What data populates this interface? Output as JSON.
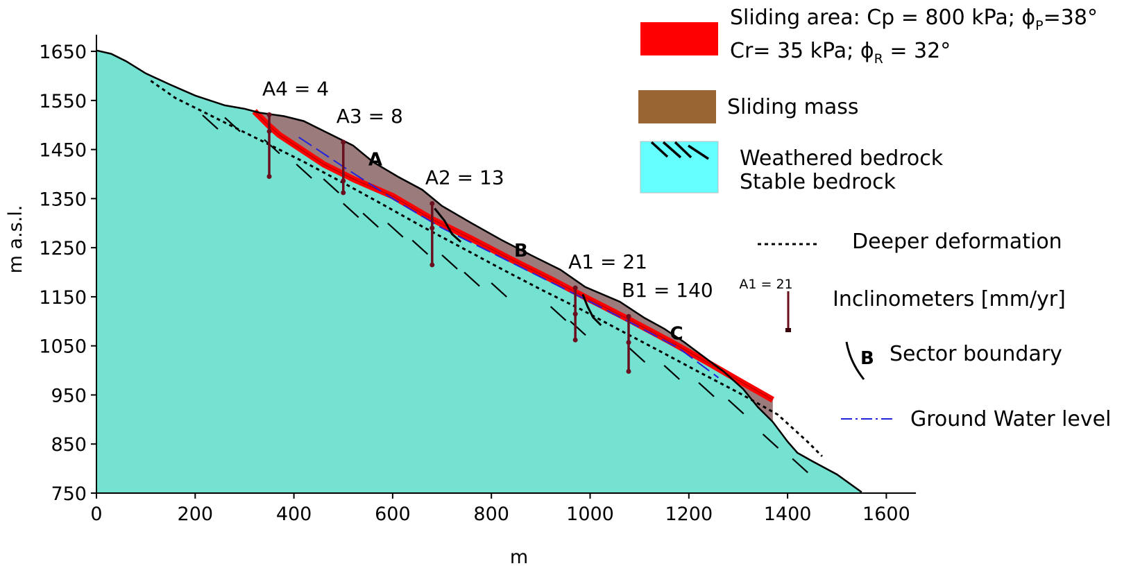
{
  "chart_data": {
    "type": "cross-section",
    "xlabel": "m",
    "ylabel": "m a.s.l.",
    "xlim": [
      0,
      1660
    ],
    "ylim": [
      750,
      1650
    ],
    "x_ticks": [
      0,
      200,
      400,
      600,
      800,
      1000,
      1200,
      1400,
      1600
    ],
    "y_ticks": [
      750,
      850,
      950,
      1050,
      1150,
      1250,
      1350,
      1450,
      1550,
      1650
    ],
    "ground_surface": [
      [
        0,
        1652
      ],
      [
        30,
        1645
      ],
      [
        60,
        1630
      ],
      [
        100,
        1605
      ],
      [
        150,
        1582
      ],
      [
        200,
        1560
      ],
      [
        260,
        1540
      ],
      [
        300,
        1533
      ],
      [
        330,
        1525
      ],
      [
        380,
        1518
      ],
      [
        420,
        1508
      ],
      [
        460,
        1488
      ],
      [
        520,
        1458
      ],
      [
        560,
        1425
      ],
      [
        610,
        1395
      ],
      [
        660,
        1368
      ],
      [
        700,
        1335
      ],
      [
        760,
        1300
      ],
      [
        820,
        1266
      ],
      [
        880,
        1235
      ],
      [
        940,
        1205
      ],
      [
        990,
        1170
      ],
      [
        1060,
        1140
      ],
      [
        1110,
        1107
      ],
      [
        1150,
        1085
      ],
      [
        1190,
        1058
      ],
      [
        1230,
        1028
      ],
      [
        1270,
        998
      ],
      [
        1310,
        962
      ],
      [
        1340,
        925
      ],
      [
        1370,
        895
      ],
      [
        1400,
        855
      ],
      [
        1420,
        832
      ],
      [
        1450,
        815
      ],
      [
        1500,
        788
      ],
      [
        1550,
        752
      ]
    ],
    "slip_surface": [
      [
        320,
        1528
      ],
      [
        350,
        1498
      ],
      [
        370,
        1480
      ],
      [
        400,
        1460
      ],
      [
        460,
        1420
      ],
      [
        520,
        1390
      ],
      [
        600,
        1355
      ],
      [
        680,
        1308
      ],
      [
        760,
        1268
      ],
      [
        840,
        1226
      ],
      [
        920,
        1186
      ],
      [
        1000,
        1144
      ],
      [
        1080,
        1103
      ],
      [
        1160,
        1060
      ],
      [
        1240,
        1015
      ],
      [
        1300,
        980
      ],
      [
        1370,
        940
      ]
    ],
    "deeper_deformation": [
      [
        110,
        1590
      ],
      [
        160,
        1555
      ],
      [
        220,
        1525
      ],
      [
        280,
        1495
      ],
      [
        350,
        1460
      ],
      [
        420,
        1425
      ],
      [
        500,
        1382
      ],
      [
        580,
        1338
      ],
      [
        660,
        1293
      ],
      [
        740,
        1250
      ],
      [
        820,
        1207
      ],
      [
        900,
        1165
      ],
      [
        980,
        1125
      ],
      [
        1060,
        1082
      ],
      [
        1140,
        1040
      ],
      [
        1220,
        997
      ],
      [
        1300,
        955
      ],
      [
        1380,
        910
      ],
      [
        1440,
        855
      ],
      [
        1470,
        825
      ]
    ],
    "ground_water_level": [
      [
        410,
        1475
      ],
      [
        500,
        1415
      ],
      [
        600,
        1350
      ],
      [
        700,
        1290
      ],
      [
        800,
        1240
      ],
      [
        900,
        1190
      ],
      [
        1000,
        1140
      ],
      [
        1100,
        1088
      ],
      [
        1180,
        1045
      ],
      [
        1260,
        985
      ]
    ],
    "inclinometers": [
      {
        "label": "A4 =  4",
        "x": 350,
        "top": 1521,
        "bottom": 1395,
        "marks": [
          1487
        ]
      },
      {
        "label": "A3 = 8",
        "x": 500,
        "top": 1465,
        "bottom": 1362,
        "marks": [
          1386
        ]
      },
      {
        "label": "A2 =  13",
        "x": 680,
        "top": 1340,
        "bottom": 1215,
        "marks": [
          1290
        ]
      },
      {
        "label": "A1 = 21",
        "x": 970,
        "top": 1168,
        "bottom": 1062,
        "marks": [
          1115
        ]
      },
      {
        "label": "B1 = 140",
        "x": 1078,
        "top": 1110,
        "bottom": 998,
        "marks": [
          1057
        ]
      }
    ],
    "sectors": [
      {
        "label": "A",
        "x": 565,
        "y": 1418
      },
      {
        "label": "B",
        "x": 860,
        "y": 1232
      },
      {
        "label": "C",
        "x": 1175,
        "y": 1063
      }
    ],
    "sector_boundaries": [
      [
        [
          685,
          1330
        ],
        [
          705,
          1305
        ],
        [
          720,
          1278
        ],
        [
          738,
          1262
        ]
      ],
      [
        [
          985,
          1155
        ],
        [
          995,
          1130
        ],
        [
          1006,
          1108
        ],
        [
          1022,
          1092
        ]
      ]
    ],
    "hatch_marks": [
      [
        215,
        1520
      ],
      [
        260,
        1515
      ],
      [
        340,
        1470
      ],
      [
        405,
        1420
      ],
      [
        460,
        1390
      ],
      [
        500,
        1340
      ],
      [
        540,
        1320
      ],
      [
        590,
        1300
      ],
      [
        640,
        1265
      ],
      [
        700,
        1235
      ],
      [
        745,
        1200
      ],
      [
        800,
        1178
      ],
      [
        920,
        1130
      ],
      [
        960,
        1100
      ],
      [
        1080,
        1045
      ],
      [
        1150,
        1010
      ],
      [
        1220,
        975
      ],
      [
        1280,
        940
      ],
      [
        1350,
        870
      ],
      [
        1410,
        820
      ]
    ]
  },
  "legend": {
    "sliding_area_line1": "Sliding area: Cp = 800 kPa; ",
    "sliding_area_phi": "ϕ",
    "sliding_area_phi_sub": "P",
    "sliding_area_line1_end": "=38°",
    "sliding_area_line2": "Cr= 35 kPa; ",
    "sliding_area_phi2": "ϕ",
    "sliding_area_phi2_sub": "R",
    "sliding_area_line2_end": " = 32°",
    "sliding_mass": "Sliding mass",
    "weathered_bedrock": "Weathered bedrock",
    "stable_bedrock": "Stable  bedrock",
    "deeper_deformation": "Deeper deformation",
    "inclinometer_example": "A1 = 21",
    "inclinometers": "Inclinometers [mm/yr]",
    "sector_symbol": "B",
    "sector_boundary": "Sector boundary",
    "ground_water_level": "Ground Water level"
  },
  "colors": {
    "stable_bedrock": "#74e1d1",
    "legend_bedrock": "#66ffff",
    "sliding_mass": "#9b7b7b",
    "legend_sliding_mass": "#996633",
    "sliding_area": "#ff0000",
    "inclinometer": "#6a0f1e",
    "gwl": "#2222dd"
  }
}
